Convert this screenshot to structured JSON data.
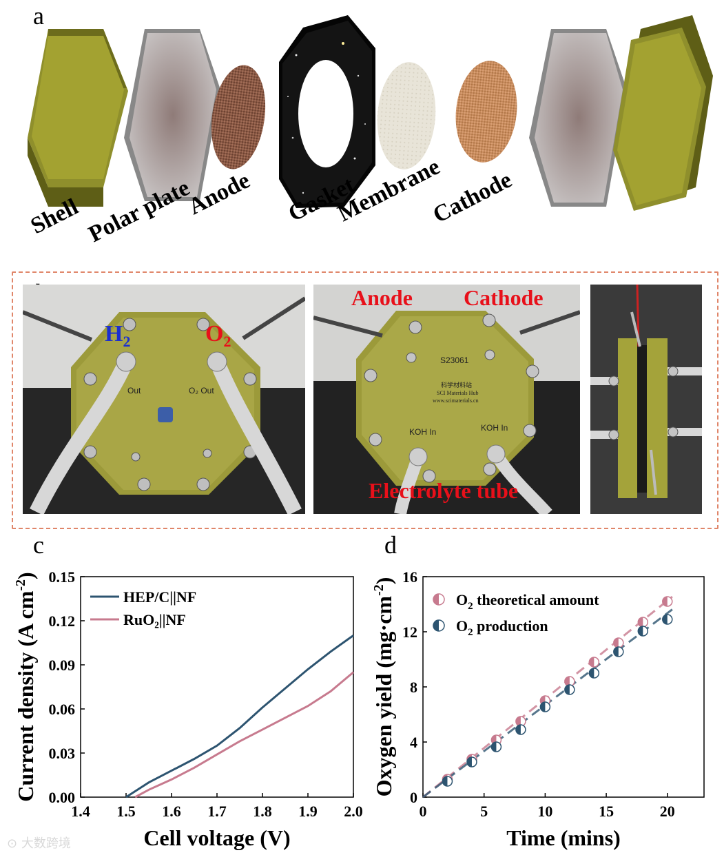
{
  "panel_letters": {
    "a": "a",
    "b": "b",
    "c": "c",
    "d": "d"
  },
  "panel_a": {
    "labels": [
      "Shell",
      "Polar plate",
      "Anode",
      "Gasket",
      "Membrane",
      "Cathode"
    ]
  },
  "panel_b": {
    "h2_label": "H",
    "h2_sub": "2",
    "o2_label": "O",
    "o2_sub": "2",
    "anode_label": "Anode",
    "cathode_label": "Cathode",
    "electrolyte_label": "Electrolyte tube",
    "photo1_text_out_left": "Out",
    "photo1_text_out_right": "O₂ Out",
    "photo2_serial": "S23061",
    "photo2_brand_cn": "科学材料站",
    "photo2_brand_en": "SCI Materials Hub",
    "photo2_brand_url": "www.scimaterials.cn",
    "photo2_koh_left": "KOH In",
    "photo2_koh_right": "KOH In"
  },
  "chart_c": {
    "type": "line",
    "xlabel": "Cell voltage (V)",
    "ylabel": "Current density (A cm",
    "ylabel_sup": "-2",
    "ylabel_close": ")",
    "xlim": [
      1.4,
      2.0
    ],
    "ylim": [
      0.0,
      0.15
    ],
    "xticks": [
      "1.4",
      "1.5",
      "1.6",
      "1.7",
      "1.8",
      "1.9",
      "2.0"
    ],
    "yticks": [
      "0.00",
      "0.03",
      "0.06",
      "0.09",
      "0.12",
      "0.15"
    ],
    "legend": [
      {
        "name": "HEP/C||NF",
        "color": "#2d5470"
      },
      {
        "name": "RuO₂||NF",
        "color": "#c77a8e"
      }
    ],
    "series": [
      {
        "name": "HEP/C||NF",
        "color": "#2d5470",
        "x": [
          1.5,
          1.55,
          1.6,
          1.65,
          1.7,
          1.75,
          1.8,
          1.85,
          1.9,
          1.95,
          2.0
        ],
        "y": [
          0.0,
          0.01,
          0.018,
          0.026,
          0.035,
          0.047,
          0.061,
          0.074,
          0.087,
          0.099,
          0.11
        ]
      },
      {
        "name": "RuO₂||NF",
        "color": "#c77a8e",
        "x": [
          1.52,
          1.55,
          1.6,
          1.65,
          1.7,
          1.75,
          1.8,
          1.85,
          1.9,
          1.95,
          2.0
        ],
        "y": [
          0.0,
          0.005,
          0.012,
          0.02,
          0.029,
          0.038,
          0.046,
          0.054,
          0.062,
          0.072,
          0.085
        ]
      }
    ]
  },
  "chart_d": {
    "type": "scatter",
    "xlabel": "Time (mins)",
    "ylabel": "Oxygen yield (mg·cm",
    "ylabel_sup": "-2",
    "ylabel_close": ")",
    "xlim": [
      0,
      23
    ],
    "ylim": [
      0,
      16
    ],
    "xticks": [
      "0",
      "5",
      "10",
      "15",
      "20"
    ],
    "yticks": [
      "0",
      "4",
      "8",
      "12",
      "16"
    ],
    "legend": [
      {
        "name_main": "O",
        "name_sub": "2",
        "name_rest": " theoretical amount",
        "color": "#c77a8e"
      },
      {
        "name_main": "O",
        "name_sub": "2",
        "name_rest": " production",
        "color": "#2d5470"
      }
    ],
    "series": [
      {
        "name": "O₂ theoretical amount",
        "color": "#c77a8e",
        "x": [
          2,
          4,
          6,
          8,
          10,
          12,
          14,
          16,
          18,
          20
        ],
        "y": [
          1.3,
          2.75,
          4.15,
          5.5,
          7.0,
          8.4,
          9.8,
          11.2,
          12.7,
          14.2
        ]
      },
      {
        "name": "O₂ production",
        "color": "#2d5470",
        "x": [
          2,
          4,
          6,
          8,
          10,
          12,
          14,
          16,
          18,
          20
        ],
        "y": [
          1.15,
          2.55,
          3.65,
          4.9,
          6.55,
          7.8,
          9.0,
          10.55,
          12.05,
          12.9
        ]
      }
    ]
  },
  "watermark": "大数跨境"
}
